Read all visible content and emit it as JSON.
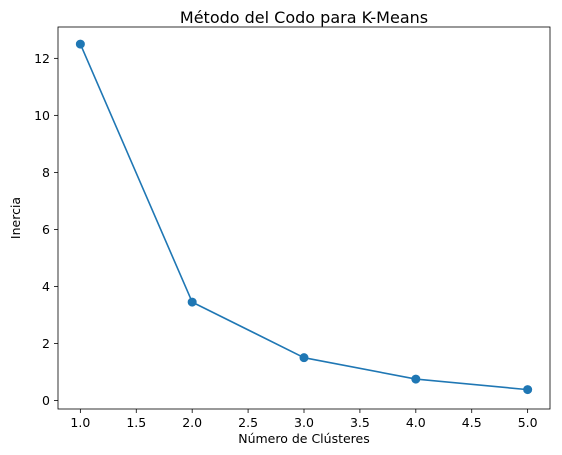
{
  "chart_data": {
    "type": "line",
    "title": "Método del Codo para K-Means",
    "xlabel": "Número de Clústeres",
    "ylabel": "Inercia",
    "xlim": [
      0.8,
      5.2
    ],
    "ylim": [
      -0.3,
      13.1
    ],
    "xticks": [
      1.0,
      1.5,
      2.0,
      2.5,
      3.0,
      3.5,
      4.0,
      4.5,
      5.0
    ],
    "xtick_labels": [
      "1.0",
      "1.5",
      "2.0",
      "2.5",
      "3.0",
      "3.5",
      "4.0",
      "4.5",
      "5.0"
    ],
    "yticks": [
      0,
      2,
      4,
      6,
      8,
      10,
      12
    ],
    "ytick_labels": [
      "0",
      "2",
      "4",
      "6",
      "8",
      "10",
      "12"
    ],
    "grid": false,
    "series": [
      {
        "x": [
          1,
          2,
          3,
          4,
          5
        ],
        "y": [
          12.5,
          3.45,
          1.5,
          0.75,
          0.38
        ],
        "color": "#1f77b4",
        "marker": "circle"
      }
    ]
  }
}
